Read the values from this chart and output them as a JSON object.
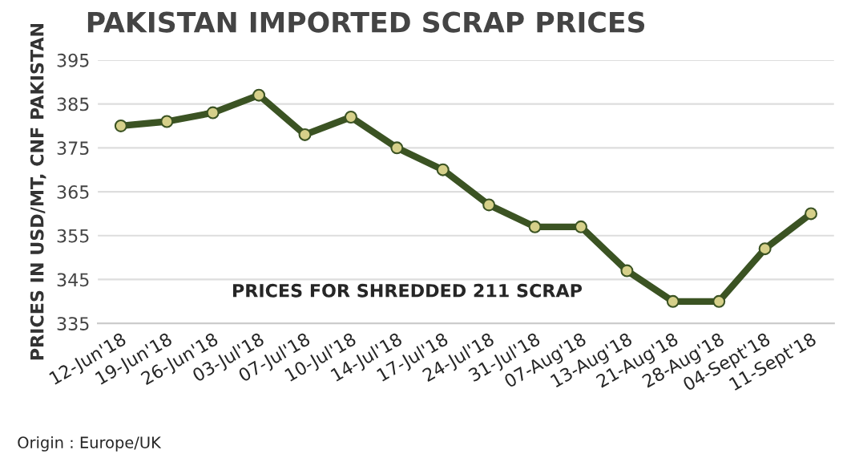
{
  "chart_data": {
    "type": "line",
    "title": "PAKISTAN IMPORTED SCRAP PRICES",
    "ylabel": "PRICES IN USD/MT, CNF PAKISTAN",
    "categories": [
      "12-Jun'18",
      "19-Jun'18",
      "26-Jun'18",
      "03-Jul'18",
      "07-Jul'18",
      "10-Jul'18",
      "14-Jul'18",
      "17-Jul'18",
      "24-Jul'18",
      "31-Jul'18",
      "07-Aug'18",
      "13-Aug'18",
      "21-Aug'18",
      "28-Aug'18",
      "04-Sept'18",
      "11-Sept'18"
    ],
    "series": [
      {
        "color": "#3b5323",
        "values": [
          380,
          381,
          383,
          387,
          378,
          382,
          375,
          370,
          362,
          357,
          357,
          347,
          340,
          340,
          352,
          360
        ]
      }
    ],
    "ylim": [
      335,
      395
    ],
    "yticks": [
      335,
      345,
      355,
      365,
      375,
      385,
      395
    ],
    "grid": "y",
    "marker": "circle",
    "line_style": "solid",
    "legend": false,
    "annotations": [
      "PRICES FOR SHREDDED 211 SCRAP",
      "Origin : Europe/UK"
    ]
  }
}
